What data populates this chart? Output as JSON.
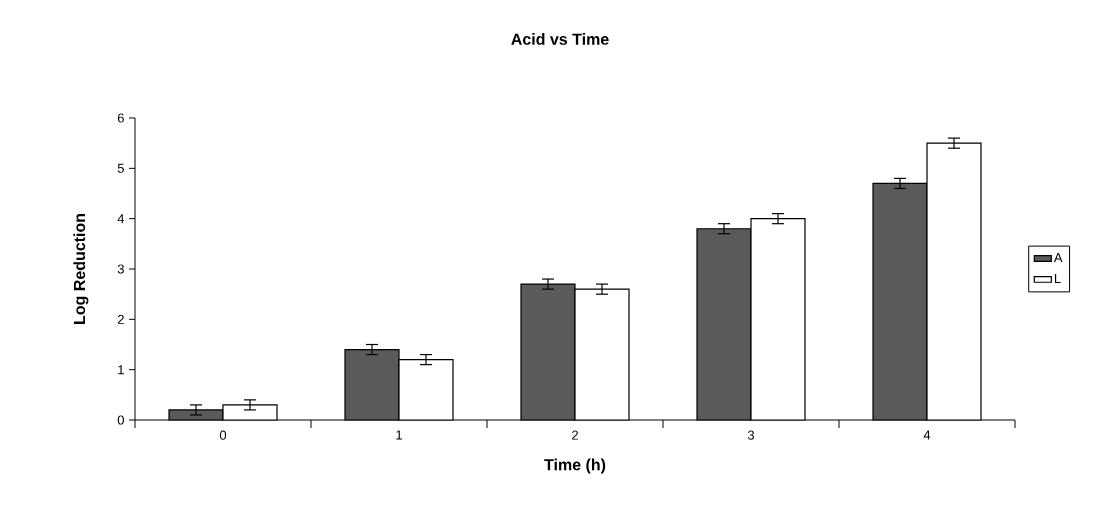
{
  "chart_data": {
    "type": "bar",
    "title": "Acid vs Time",
    "xlabel": "Time (h)",
    "ylabel": "Log Reduction",
    "categories": [
      "0",
      "1",
      "2",
      "3",
      "4"
    ],
    "series": [
      {
        "name": "A",
        "color": "#5a5a5a",
        "values": [
          0.2,
          1.4,
          2.7,
          3.8,
          4.7
        ],
        "errors": [
          0.1,
          0.1,
          0.1,
          0.1,
          0.1
        ]
      },
      {
        "name": "L",
        "color": "#ffffff",
        "values": [
          0.3,
          1.2,
          2.6,
          4.0,
          5.5
        ],
        "errors": [
          0.1,
          0.1,
          0.1,
          0.1,
          0.1
        ]
      }
    ],
    "ylim": [
      0,
      6
    ],
    "yticks": [
      0,
      1,
      2,
      3,
      4,
      5,
      6
    ],
    "grid": false,
    "legend": "right"
  }
}
